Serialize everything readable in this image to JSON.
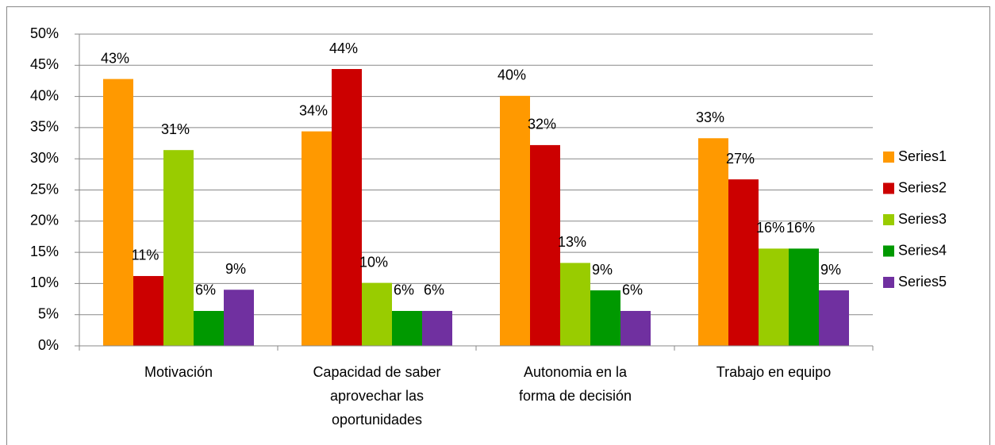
{
  "chart_data": {
    "type": "bar",
    "categories": [
      "Motivación",
      "Capacidad de saber aprovechar las oportunidades",
      "Autonomia en la forma de decisión",
      "Trabajo en equipo"
    ],
    "series": [
      {
        "name": "Series1",
        "color": "#ff9900",
        "values": [
          42.8,
          34.4,
          40.1,
          33.3
        ],
        "value_labels": [
          "43%",
          "34%",
          "40%",
          "33%"
        ]
      },
      {
        "name": "Series2",
        "color": "#cc0000",
        "values": [
          11.2,
          44.4,
          32.2,
          26.7
        ],
        "value_labels": [
          "11%",
          "44%",
          "32%",
          "27%"
        ]
      },
      {
        "name": "Series3",
        "color": "#99cc00",
        "values": [
          31.4,
          10.1,
          13.3,
          15.6
        ],
        "value_labels": [
          "31%",
          "10%",
          "13%",
          "16%"
        ]
      },
      {
        "name": "Series4",
        "color": "#009900",
        "values": [
          5.6,
          5.6,
          8.9,
          15.6
        ],
        "value_labels": [
          "6%",
          "6%",
          "9%",
          "16%"
        ]
      },
      {
        "name": "Series5",
        "color": "#7030a0",
        "values": [
          9.0,
          5.6,
          5.6,
          8.9
        ],
        "value_labels": [
          "9%",
          "6%",
          "6%",
          "9%"
        ]
      }
    ],
    "ylim": [
      0,
      50
    ],
    "yticks": [
      {
        "value": 0,
        "label": "0%"
      },
      {
        "value": 5,
        "label": "5%"
      },
      {
        "value": 10,
        "label": "10%"
      },
      {
        "value": 15,
        "label": "15%"
      },
      {
        "value": 20,
        "label": "20%"
      },
      {
        "value": 25,
        "label": "25%"
      },
      {
        "value": 30,
        "label": "30%"
      },
      {
        "value": 35,
        "label": "35%"
      },
      {
        "value": 40,
        "label": "40%"
      },
      {
        "value": 45,
        "label": "45%"
      },
      {
        "value": 50,
        "label": "50%"
      }
    ],
    "grid": true,
    "legend": "right"
  }
}
